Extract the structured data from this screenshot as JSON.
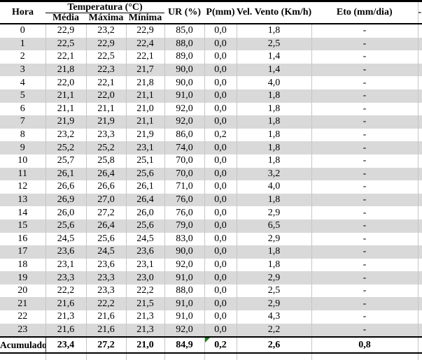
{
  "table": {
    "columns": {
      "hora": "Hora",
      "temperatura_group": "Temperatura (°C)",
      "media": "Média",
      "maxima": "Máxima",
      "minima": "Mínima",
      "ur": "UR (%)",
      "p": "P(mm)",
      "vel_vento": "Vel. Vento (Km/h)",
      "eto": "Eto (mm/dia)"
    },
    "cutoff_mark": "-",
    "rows": [
      [
        "0",
        "22,9",
        "23,2",
        "22,9",
        "85,0",
        "0,0",
        "1,8",
        "-"
      ],
      [
        "1",
        "22,5",
        "22,9",
        "22,4",
        "88,0",
        "0,0",
        "2,5",
        "-"
      ],
      [
        "2",
        "22,1",
        "22,5",
        "22,1",
        "89,0",
        "0,0",
        "1,4",
        "-"
      ],
      [
        "3",
        "21,8",
        "22,3",
        "21,7",
        "90,0",
        "0,0",
        "1,4",
        "-"
      ],
      [
        "4",
        "22,0",
        "22,1",
        "21,8",
        "90,0",
        "0,0",
        "4,0",
        "-"
      ],
      [
        "5",
        "21,1",
        "22,0",
        "21,1",
        "91,0",
        "0,0",
        "1,8",
        "-"
      ],
      [
        "6",
        "21,1",
        "21,1",
        "21,0",
        "92,0",
        "0,0",
        "1,8",
        "-"
      ],
      [
        "7",
        "21,9",
        "21,9",
        "21,1",
        "92,0",
        "0,0",
        "1,8",
        "-"
      ],
      [
        "8",
        "23,2",
        "23,3",
        "21,9",
        "86,0",
        "0,2",
        "1,8",
        "-"
      ],
      [
        "9",
        "25,2",
        "25,2",
        "23,1",
        "74,0",
        "0,0",
        "1,8",
        "-"
      ],
      [
        "10",
        "25,7",
        "25,8",
        "25,1",
        "70,0",
        "0,0",
        "1,8",
        "-"
      ],
      [
        "11",
        "26,1",
        "26,4",
        "25,6",
        "70,0",
        "0,0",
        "3,2",
        "-"
      ],
      [
        "12",
        "26,6",
        "26,6",
        "26,1",
        "71,0",
        "0,0",
        "4,0",
        "-"
      ],
      [
        "13",
        "26,9",
        "27,0",
        "26,4",
        "76,0",
        "0,0",
        "1,8",
        "-"
      ],
      [
        "14",
        "26,0",
        "27,2",
        "26,0",
        "76,0",
        "0,0",
        "2,9",
        "-"
      ],
      [
        "15",
        "25,6",
        "26,4",
        "25,6",
        "79,0",
        "0,0",
        "6,5",
        "-"
      ],
      [
        "16",
        "24,5",
        "25,6",
        "24,5",
        "83,0",
        "0,0",
        "2,9",
        "-"
      ],
      [
        "17",
        "23,6",
        "24,5",
        "23,6",
        "90,0",
        "0,0",
        "1,8",
        "-"
      ],
      [
        "18",
        "23,1",
        "23,6",
        "23,1",
        "92,0",
        "0,0",
        "1,8",
        "-"
      ],
      [
        "19",
        "23,3",
        "23,3",
        "23,0",
        "91,0",
        "0,0",
        "2,9",
        "-"
      ],
      [
        "20",
        "22,2",
        "23,3",
        "22,2",
        "88,0",
        "0,0",
        "2,5",
        "-"
      ],
      [
        "21",
        "21,6",
        "22,2",
        "21,5",
        "91,0",
        "0,0",
        "2,9",
        "-"
      ],
      [
        "22",
        "21,3",
        "21,6",
        "21,3",
        "91,0",
        "0,0",
        "4,3",
        "-"
      ],
      [
        "23",
        "21,6",
        "21,6",
        "21,3",
        "92,0",
        "0,0",
        "2,2",
        "-"
      ]
    ],
    "footer": {
      "label": "Acumulado",
      "values": [
        "23,4",
        "27,2",
        "21,0",
        "84,9",
        "0,2",
        "2,6",
        "0,8"
      ]
    }
  },
  "colors": {
    "stripe": "#d9d9d9",
    "grid_line": "#c6c6c6",
    "border": "#000000",
    "flag_green": "#1e7b1e"
  }
}
